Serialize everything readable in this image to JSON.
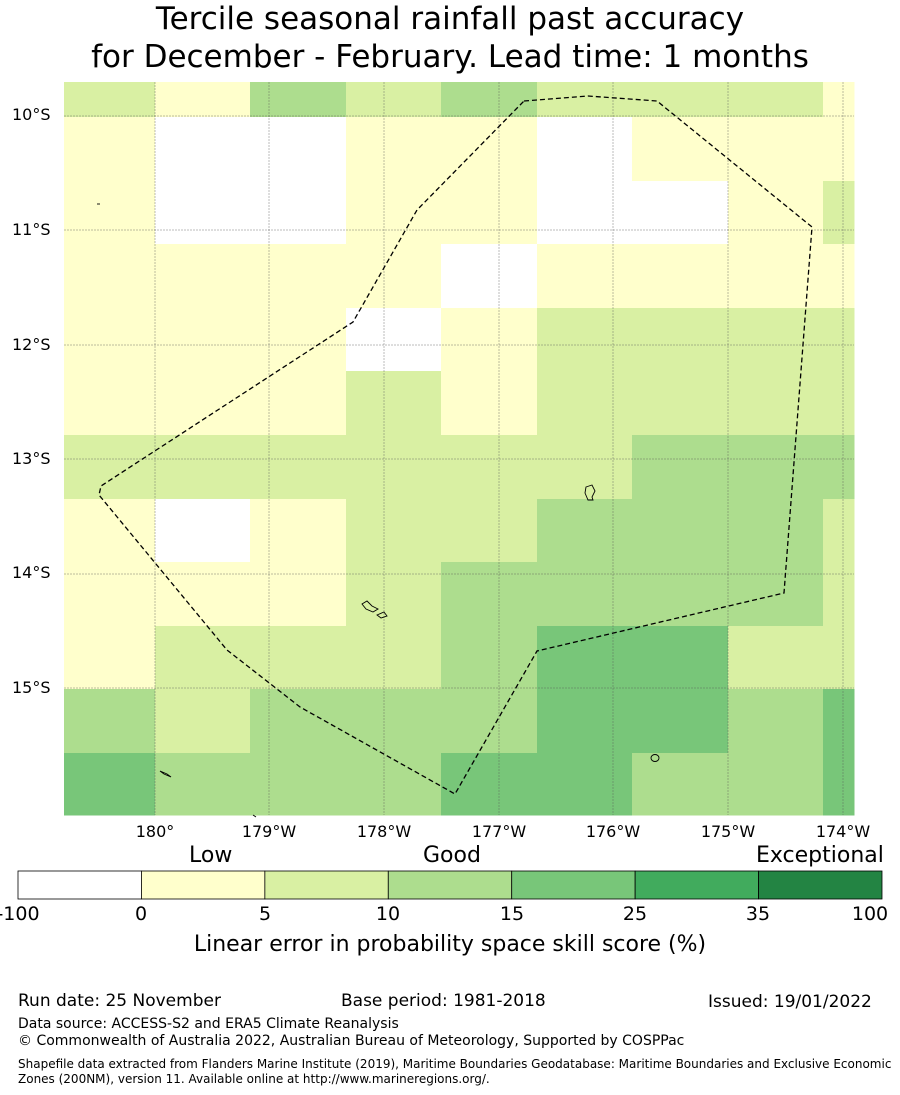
{
  "title": {
    "line1": "Tercile seasonal rainfall past accuracy",
    "line2": "for December - February. Lead time: 1 months"
  },
  "map": {
    "lat_labels": [
      "10°S",
      "11°S",
      "12°S",
      "13°S",
      "14°S",
      "15°S"
    ],
    "lon_labels": [
      "180°",
      "179°W",
      "178°W",
      "177°W",
      "176°W",
      "175°W",
      "174°W"
    ],
    "grid_rows_skill_class": [
      [
        2,
        1,
        3,
        2,
        3,
        2,
        2,
        2,
        1
      ],
      [
        1,
        0,
        0,
        1,
        1,
        0,
        1,
        1,
        1
      ],
      [
        1,
        0,
        0,
        1,
        1,
        0,
        0,
        1,
        2
      ],
      [
        1,
        1,
        1,
        1,
        0,
        1,
        1,
        1,
        1
      ],
      [
        1,
        1,
        1,
        0,
        1,
        2,
        2,
        2,
        2
      ],
      [
        1,
        1,
        1,
        2,
        1,
        2,
        2,
        2,
        2
      ],
      [
        2,
        2,
        2,
        2,
        2,
        2,
        3,
        3,
        3
      ],
      [
        1,
        0,
        1,
        2,
        2,
        3,
        3,
        3,
        2
      ],
      [
        1,
        1,
        1,
        2,
        3,
        3,
        3,
        3,
        2
      ],
      [
        1,
        2,
        2,
        2,
        3,
        4,
        4,
        2,
        2
      ],
      [
        3,
        2,
        3,
        3,
        3,
        4,
        4,
        3,
        4
      ],
      [
        4,
        3,
        3,
        3,
        4,
        4,
        3,
        3,
        4
      ]
    ]
  },
  "colorbar": {
    "categories": [
      "Low",
      "Good",
      "Exceptional"
    ],
    "ticks": [
      "-100",
      "0",
      "5",
      "10",
      "15",
      "25",
      "35",
      "100"
    ],
    "colors": [
      "#ffffff",
      "#ffffcc",
      "#d9f0a3",
      "#addd8e",
      "#78c679",
      "#41ab5d",
      "#238443"
    ],
    "label": "Linear error in probability space skill score (%)"
  },
  "footer": {
    "run_date": "Run date: 25 November",
    "base_period": "Base period: 1981-2018",
    "issued": "Issued: 19/01/2022",
    "data_source": "Data source: ACCESS-S2 and ERA5 Climate Reanalysis",
    "copyright": "© Commonwealth of Australia 2022, Australian Bureau of Meteorology, Supported by COSPPac",
    "shapefile": "Shapefile data extracted from Flanders Marine Institute (2019), Maritime Boundaries Geodatabase: Maritime Boundaries and Exclusive Economic Zones (200NM), version 11. Available online at http://www.marineregions.org/."
  }
}
